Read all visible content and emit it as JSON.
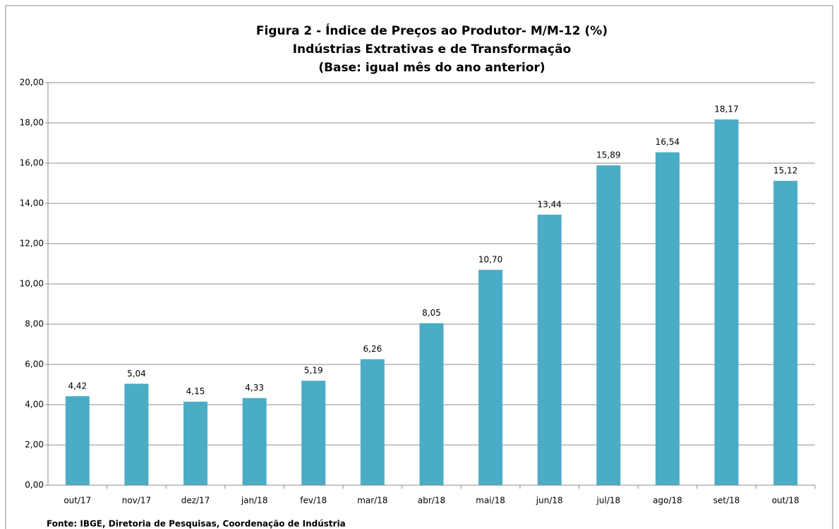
{
  "chart_data": {
    "type": "bar",
    "title": [
      "Figura 2 - Índice de Preços ao Produtor- M/M-12 (%)",
      "Indústrias Extrativas e de Transformação",
      "(Base: igual mês do ano anterior)"
    ],
    "categories": [
      "out/17",
      "nov/17",
      "dez/17",
      "jan/18",
      "fev/18",
      "mar/18",
      "abr/18",
      "mai/18",
      "jun/18",
      "jul/18",
      "ago/18",
      "set/18",
      "out/18"
    ],
    "values": [
      4.42,
      5.04,
      4.15,
      4.33,
      5.19,
      6.26,
      8.05,
      10.7,
      13.44,
      15.89,
      16.54,
      18.17,
      15.12
    ],
    "value_labels": [
      "4,42",
      "5,04",
      "4,15",
      "4,33",
      "5,19",
      "6,26",
      "8,05",
      "10,70",
      "13,44",
      "15,89",
      "16,54",
      "18,17",
      "15,12"
    ],
    "color": "#4bacc6",
    "ylim": [
      0,
      20
    ],
    "yticks": [
      {
        "value": 0,
        "label": "0,00"
      },
      {
        "value": 2,
        "label": "2,00"
      },
      {
        "value": 4,
        "label": "4,00"
      },
      {
        "value": 6,
        "label": "6,00"
      },
      {
        "value": 8,
        "label": "8,00"
      },
      {
        "value": 10,
        "label": "10,00"
      },
      {
        "value": 12,
        "label": "12,00"
      },
      {
        "value": 14,
        "label": "14,00"
      },
      {
        "value": 16,
        "label": "16,00"
      },
      {
        "value": 18,
        "label": "18,00"
      },
      {
        "value": 20,
        "label": "20,00"
      }
    ],
    "grid": true,
    "source": "Fonte: IBGE, Diretoria de Pesquisas, Coordenação de Indústria"
  }
}
